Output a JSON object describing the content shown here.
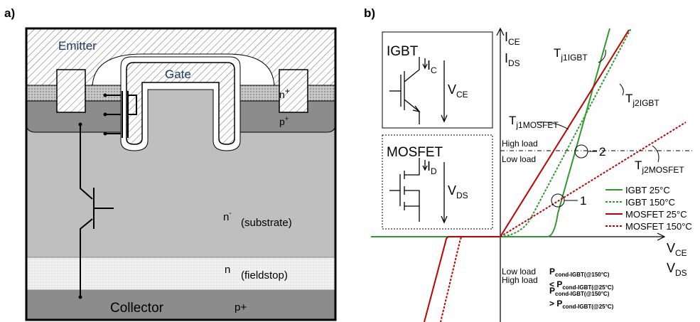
{
  "panel_a": {
    "label": "a)",
    "emitter": "Emitter",
    "gate": "Gate",
    "n_plus": [
      "n",
      "+"
    ],
    "p_plus": [
      "p",
      "+"
    ],
    "n_minus": [
      "n",
      "-"
    ],
    "substrate": "(substrate)",
    "fieldstop_n": "n",
    "fieldstop": "(fieldstop)",
    "collector": "Collector",
    "collector_p": "p+"
  },
  "panel_b": {
    "label": "b)",
    "y_axis": [
      [
        "I",
        "CE"
      ],
      [
        "I",
        "DS"
      ]
    ],
    "x_axis": [
      [
        "V",
        "CE"
      ],
      [
        "V",
        "DS"
      ]
    ],
    "igbt_inset": {
      "title": "IGBT",
      "current": [
        "I",
        "C"
      ],
      "voltage": [
        "V",
        "CE"
      ]
    },
    "mosfet_inset": {
      "title": "MOSFET",
      "current": [
        "I",
        "D"
      ],
      "voltage": [
        "V",
        "DS"
      ]
    },
    "curve_labels": [
      [
        "T",
        "j1IGBT"
      ],
      [
        "T",
        "j2IGBT"
      ],
      [
        "T",
        "j1MOSFET"
      ],
      [
        "T",
        "j2MOSFET"
      ]
    ],
    "load_levels": [
      "High load",
      "Low load"
    ],
    "points": [
      "2",
      "1"
    ],
    "legend": [
      {
        "name": "IGBT 25°C",
        "color": "#2e9a2e",
        "style": "solid"
      },
      {
        "name": "IGBT 150°C",
        "color": "#2e9a2e",
        "style": "dotted"
      },
      {
        "name": "MOSFET 25°C",
        "color": "#c00000",
        "style": "solid"
      },
      {
        "name": "MOSFET 150°C",
        "color": "#c00000",
        "style": "dotted"
      }
    ],
    "notes": [
      {
        "title": "Low load",
        "lines": [
          [
            "P",
            "cond-IGBT(@150°C)"
          ],
          [
            "< P",
            "cond-IGBT(@25°C)"
          ]
        ]
      },
      {
        "title": "High load",
        "lines": [
          [
            "P",
            "cond-IGBT(@150°C)"
          ],
          [
            "> P",
            "cond-IGBT(@25°C)"
          ]
        ]
      }
    ]
  }
}
